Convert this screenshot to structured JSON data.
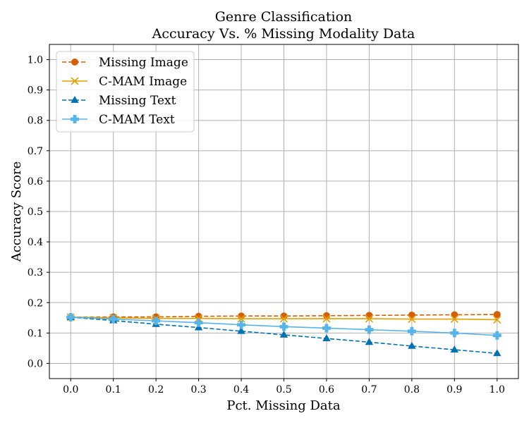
{
  "chart_data": {
    "type": "line",
    "title": "Genre Classification",
    "subtitle": "Accuracy Vs. % Missing Modality Data",
    "xlabel": "Pct. Missing Data",
    "ylabel": "Accuracy Score",
    "x": [
      0.0,
      0.1,
      0.2,
      0.3,
      0.4,
      0.5,
      0.6,
      0.7,
      0.8,
      0.9,
      1.0
    ],
    "xticks": [
      "0.0",
      "0.1",
      "0.2",
      "0.3",
      "0.4",
      "0.5",
      "0.6",
      "0.7",
      "0.8",
      "0.9",
      "1.0"
    ],
    "yticks": [
      "0.0",
      "0.1",
      "0.2",
      "0.3",
      "0.4",
      "0.5",
      "0.6",
      "0.7",
      "0.8",
      "0.9",
      "1.0"
    ],
    "xlim": [
      -0.05,
      1.05
    ],
    "ylim": [
      -0.05,
      1.05
    ],
    "grid": true,
    "legend_position": "top-left",
    "series": [
      {
        "name": "Missing Image",
        "color": "#d55e00",
        "linestyle": "dashed",
        "marker": "circle",
        "values": [
          0.152,
          0.153,
          0.153,
          0.155,
          0.156,
          0.156,
          0.157,
          0.158,
          0.159,
          0.16,
          0.161
        ]
      },
      {
        "name": "C-MAM Image",
        "color": "#e69f00",
        "linestyle": "solid",
        "marker": "x",
        "values": [
          0.152,
          0.15,
          0.148,
          0.148,
          0.147,
          0.147,
          0.147,
          0.147,
          0.146,
          0.146,
          0.144
        ]
      },
      {
        "name": "Missing Text",
        "color": "#0072b2",
        "linestyle": "dashed",
        "marker": "triangle",
        "values": [
          0.152,
          0.141,
          0.129,
          0.118,
          0.106,
          0.094,
          0.082,
          0.07,
          0.057,
          0.045,
          0.033
        ]
      },
      {
        "name": "C-MAM Text",
        "color": "#56b4e9",
        "linestyle": "solid",
        "marker": "plus",
        "values": [
          0.152,
          0.146,
          0.14,
          0.134,
          0.127,
          0.121,
          0.116,
          0.111,
          0.106,
          0.1,
          0.092
        ]
      }
    ]
  }
}
